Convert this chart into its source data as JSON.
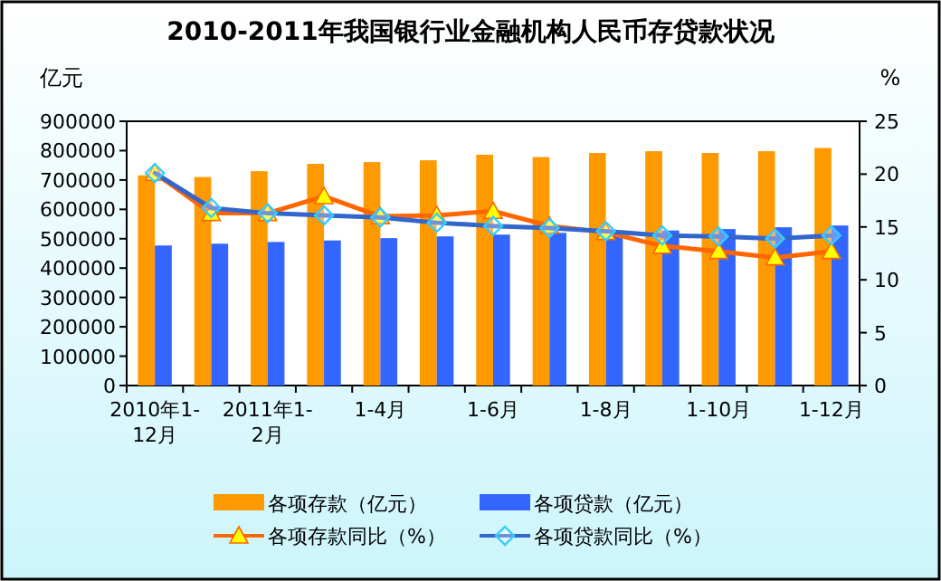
{
  "chart_data": {
    "type": "bar",
    "title": "2010-2011年我国银行业金融机构人民币存贷款状况",
    "ylabel": "亿元",
    "y2label": "%",
    "categories": [
      "2010年1-12月",
      null,
      "2011年1-2月",
      null,
      "1-4月",
      null,
      "1-6月",
      null,
      "1-8月",
      null,
      "1-10月",
      null,
      "1-12月"
    ],
    "series": [
      {
        "name": "各项存款（亿元）",
        "color": "#ff9900",
        "values": [
          716000,
          710000,
          730000,
          755000,
          761000,
          767000,
          786000,
          778000,
          792000,
          798000,
          792000,
          798000,
          809000
        ]
      },
      {
        "name": "各项贷款（亿元）",
        "color": "#3366ff",
        "values": [
          477000,
          483000,
          489000,
          494000,
          502000,
          508000,
          514000,
          520000,
          522000,
          528000,
          533000,
          539000,
          545000
        ]
      },
      {
        "name": "各项存款同比（%）",
        "type": "line",
        "axis": "y2",
        "color": "#ff6600",
        "marker": "triangle",
        "values": [
          20.1,
          16.3,
          16.3,
          17.9,
          16.0,
          16.1,
          16.5,
          15.1,
          14.5,
          13.2,
          12.7,
          12.1,
          12.7
        ]
      },
      {
        "name": "各项贷款同比（%）",
        "type": "line",
        "axis": "y2",
        "color": "#3366cc",
        "marker": "diamond",
        "values": [
          20.1,
          16.8,
          16.3,
          16.1,
          15.9,
          15.4,
          15.1,
          14.9,
          14.6,
          14.2,
          14.1,
          13.9,
          14.2
        ]
      }
    ],
    "ylim": [
      0,
      900000
    ],
    "yticks": [
      0,
      100000,
      200000,
      300000,
      400000,
      500000,
      600000,
      700000,
      800000,
      900000
    ],
    "y2lim": [
      0,
      25
    ],
    "y2ticks": [
      0,
      5,
      10,
      15,
      20,
      25
    ],
    "grid": false,
    "legend": "bottom"
  }
}
